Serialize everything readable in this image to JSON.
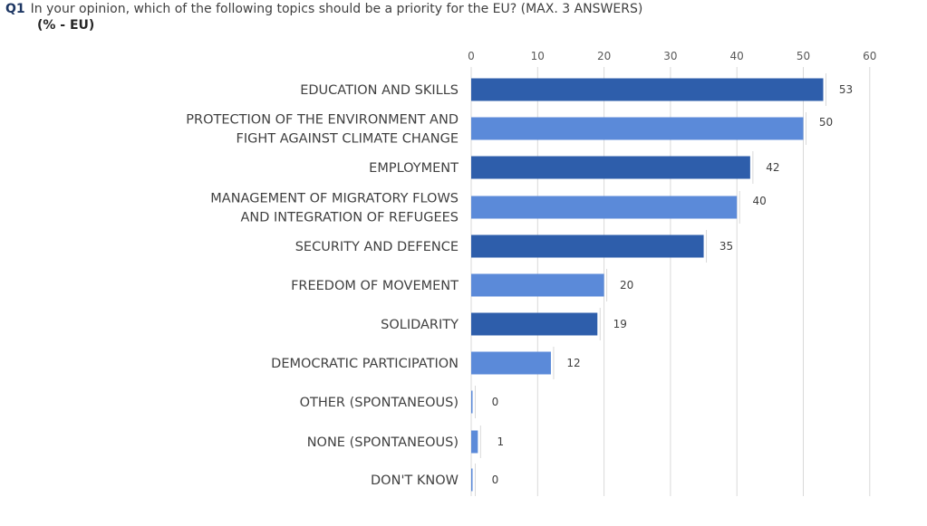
{
  "question": {
    "number": "Q1",
    "text": "In your opinion, which of the following topics should be a priority for the EU? (MAX. 3 ANSWERS)",
    "subtitle": "(% - EU)"
  },
  "colors": {
    "dark_bar": "#2e5eab",
    "light_bar": "#5b8ad9",
    "gridline": "#d9d9d9",
    "leader": "#d9d9d9"
  },
  "chart_data": {
    "type": "bar",
    "orientation": "horizontal",
    "categories": [
      "EDUCATION AND SKILLS",
      "PROTECTION OF THE ENVIRONMENT AND\nFIGHT AGAINST CLIMATE CHANGE",
      "EMPLOYMENT",
      "MANAGEMENT OF MIGRATORY FLOWS\nAND INTEGRATION OF REFUGEES",
      "SECURITY AND DEFENCE",
      "FREEDOM OF MOVEMENT",
      "SOLIDARITY",
      "DEMOCRATIC PARTICIPATION",
      "OTHER (SPONTANEOUS)",
      "NONE (SPONTANEOUS)",
      "DON'T KNOW"
    ],
    "values": [
      53,
      50,
      42,
      40,
      35,
      20,
      19,
      12,
      0,
      1,
      0
    ],
    "value_labels": [
      "53",
      "50",
      "42",
      "40",
      "35",
      "20",
      "19",
      "12",
      "0",
      "1",
      "0"
    ],
    "bar_colors": [
      "dark",
      "light",
      "dark",
      "light",
      "dark",
      "light",
      "dark",
      "light",
      "light",
      "light",
      "light"
    ],
    "xlim": [
      0,
      60
    ],
    "xticks": [
      "0",
      "10",
      "20",
      "30",
      "40",
      "50",
      "60"
    ],
    "x_axis_position": "top",
    "grid": true,
    "legend": "none"
  }
}
